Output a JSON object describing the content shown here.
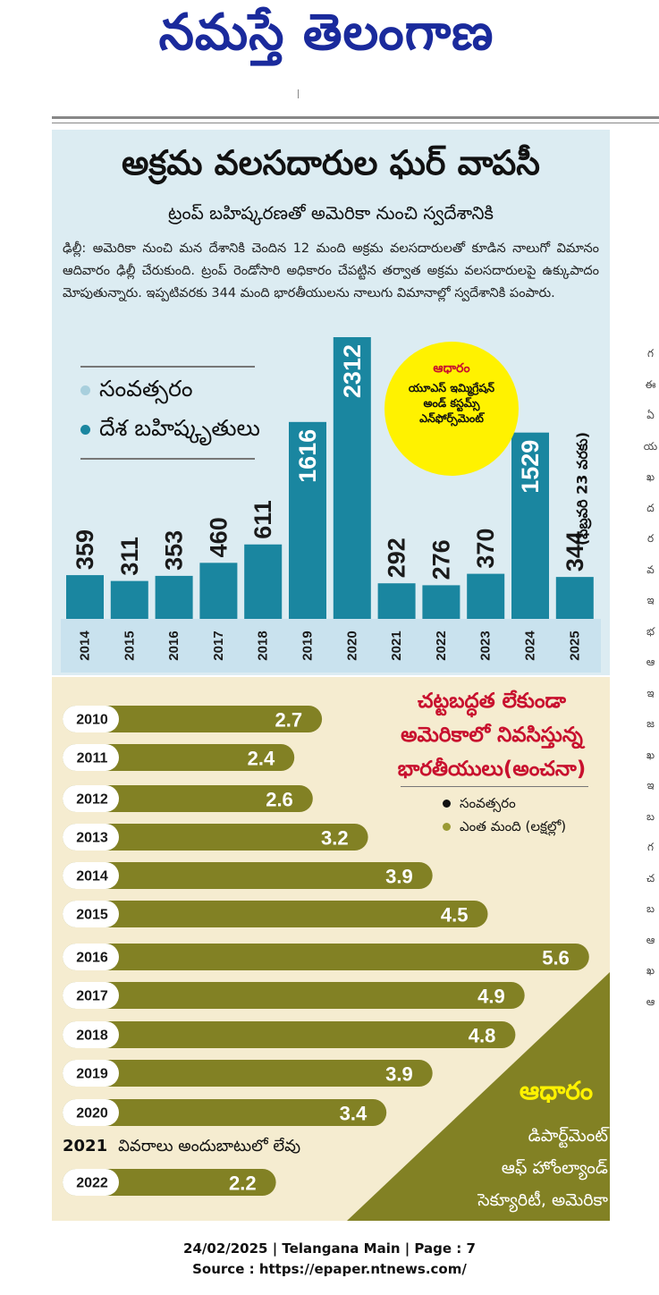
{
  "masthead": {
    "title": "నమస్తే తెలంగాణ"
  },
  "article": {
    "headline": "అక్రమ వలసదారుల ఘర్ వాపసీ",
    "subheadline": "ట్రంప్ బహిష్కరణతో అమెరికా నుంచి స్వదేశానికి",
    "body": "ఢిల్లీ: అమెరికా నుంచి మన దేశానికి చెందిన 12 మంది అక్రమ వలసదారులతో కూడిన నాలుగో విమానం ఆదివారం ఢిల్లీ చేరుకుంది. ట్రంప్ రెండోసారి అధికారం చేపట్టిన తర్వాత అక్రమ వలసదారులపై ఉక్కుపాదం మోపుతున్నారు. ఇప్పటివరకు 344 మంది భారతీయులను నాలుగు విమానాల్లో స్వదేశానికి పంపారు."
  },
  "colors": {
    "bar_teal": "#1a86a0",
    "year_band": "#c9e2ee",
    "panel_top": "#dcecf2",
    "panel_bottom": "#f5ecd0",
    "olive": "#828124",
    "red": "#c8102e",
    "yellow": "#fff200",
    "navy": "#1a2a9c"
  },
  "chart_data": [
    {
      "type": "bar",
      "legend": {
        "year_label": "సంవత్సరం",
        "value_label": "దేశ బహిష్కృతులు"
      },
      "categories": [
        "2014",
        "2015",
        "2016",
        "2017",
        "2018",
        "2019",
        "2020",
        "2021",
        "2022",
        "2023",
        "2024",
        "2025"
      ],
      "values": [
        359,
        311,
        353,
        460,
        611,
        1616,
        2312,
        292,
        276,
        370,
        1529,
        344
      ],
      "source": {
        "title": "ఆధారం",
        "text": "యూఎస్ ఇమ్మిగ్రేషన్ అండ్ కస్టమ్స్ ఎన్‌ఫోర్స్‌మెంట్"
      },
      "note": "(ఫిబ్రవరి 23 వరకు)"
    },
    {
      "type": "bar",
      "orientation": "horizontal",
      "title": "చట్టబద్ధత లేకుండా అమెరికాలో నివసిస్తున్న భారతీయులు(అంచనా)",
      "legend": {
        "year_label": "సంవత్సరం",
        "value_label": "ఎంత మంది (లక్షల్లో)"
      },
      "categories": [
        "2010",
        "2011",
        "2012",
        "2013",
        "2014",
        "2015",
        "2016",
        "2017",
        "2018",
        "2019",
        "2020",
        "2021",
        "2022"
      ],
      "values": [
        2.7,
        2.4,
        2.6,
        3.2,
        3.9,
        4.5,
        5.6,
        4.9,
        4.8,
        3.9,
        3.4,
        null,
        2.2
      ],
      "na_year": "2021",
      "na_text": "వివరాలు అందుబాటులో లేవు",
      "source": {
        "title": "ఆధారం",
        "lines": [
          "డిపార్ట్‌మెంట్",
          "ఆఫ్ హోంల్యాండ్",
          "సెక్యూరిటీ, అమెరికా"
        ]
      }
    }
  ],
  "side_strip": {
    "text": "గ ఈ ఏ య ఖ ద ర వ ఇ భ ఆ ఇ జ ఖ ఇ బ గ చ బ ఆ ఖ ఆ"
  },
  "footer": {
    "line1": "24/02/2025 | Telangana Main | Page : 7",
    "line2": "Source : https://epaper.ntnews.com/"
  }
}
